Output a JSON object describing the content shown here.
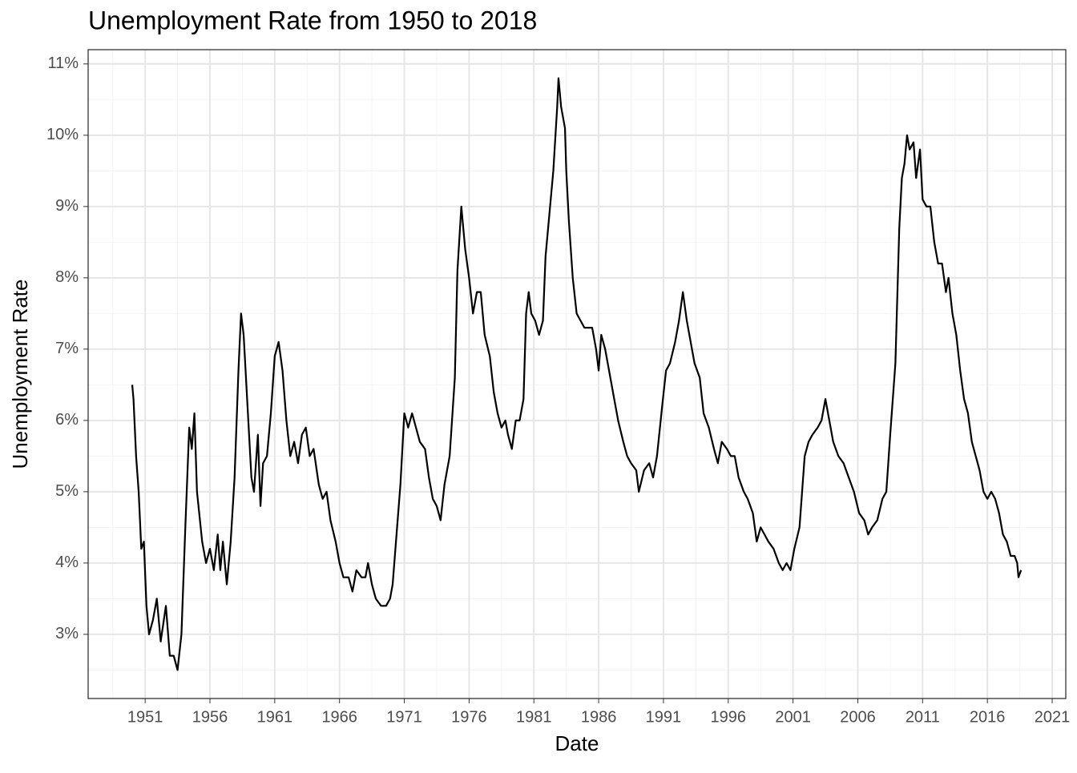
{
  "chart_data": {
    "type": "line",
    "title": "Unemployment Rate from 1950 to 2018",
    "x_label": "Date",
    "y_label": "Unemployment Rate",
    "xlim": [
      1946.6,
      2022.05
    ],
    "xticks": [
      1951,
      1956,
      1961,
      1966,
      1971,
      1976,
      1981,
      1986,
      1991,
      1996,
      2001,
      2006,
      2011,
      2016,
      2021
    ],
    "ylim": [
      2.1,
      11.2
    ],
    "yticks": [
      {
        "value": 3,
        "label": "3%"
      },
      {
        "value": 4,
        "label": "4%"
      },
      {
        "value": 5,
        "label": "5%"
      },
      {
        "value": 6,
        "label": "6%"
      },
      {
        "value": 7,
        "label": "7%"
      },
      {
        "value": 8,
        "label": "8%"
      },
      {
        "value": 9,
        "label": "9%"
      },
      {
        "value": 10,
        "label": "10%"
      },
      {
        "value": 11,
        "label": "11%"
      }
    ],
    "grid": true,
    "series": [
      {
        "color": "#000000",
        "x": [
          1950.0,
          1950.1,
          1950.3,
          1950.5,
          1950.7,
          1950.9,
          1951.1,
          1951.3,
          1951.6,
          1951.9,
          1952.2,
          1952.6,
          1952.9,
          1953.2,
          1953.5,
          1953.8,
          1954.1,
          1954.4,
          1954.6,
          1954.8,
          1955.0,
          1955.4,
          1955.7,
          1956.0,
          1956.3,
          1956.6,
          1956.8,
          1957.0,
          1957.3,
          1957.6,
          1957.9,
          1958.2,
          1958.4,
          1958.6,
          1958.9,
          1959.2,
          1959.4,
          1959.7,
          1959.9,
          1960.1,
          1960.4,
          1960.7,
          1961.0,
          1961.3,
          1961.6,
          1961.9,
          1962.2,
          1962.5,
          1962.8,
          1963.1,
          1963.4,
          1963.7,
          1964.0,
          1964.4,
          1964.7,
          1965.0,
          1965.3,
          1965.7,
          1966.0,
          1966.3,
          1966.7,
          1967.0,
          1967.3,
          1967.7,
          1968.0,
          1968.2,
          1968.5,
          1968.8,
          1969.2,
          1969.6,
          1969.9,
          1970.1,
          1970.4,
          1970.7,
          1971.0,
          1971.3,
          1971.6,
          1971.9,
          1972.2,
          1972.6,
          1972.9,
          1973.2,
          1973.5,
          1973.8,
          1974.1,
          1974.5,
          1974.9,
          1975.1,
          1975.4,
          1975.7,
          1976.0,
          1976.3,
          1976.6,
          1976.9,
          1977.2,
          1977.6,
          1977.9,
          1978.2,
          1978.5,
          1978.8,
          1979.0,
          1979.3,
          1979.6,
          1979.9,
          1980.2,
          1980.4,
          1980.6,
          1980.8,
          1981.1,
          1981.4,
          1981.7,
          1981.9,
          1982.2,
          1982.5,
          1982.8,
          1982.9,
          1983.1,
          1983.4,
          1983.5,
          1983.7,
          1984.0,
          1984.3,
          1984.6,
          1984.9,
          1985.2,
          1985.5,
          1985.8,
          1986.0,
          1986.2,
          1986.5,
          1986.9,
          1987.2,
          1987.5,
          1987.9,
          1988.2,
          1988.5,
          1988.9,
          1989.1,
          1989.5,
          1989.9,
          1990.2,
          1990.5,
          1990.9,
          1991.2,
          1991.5,
          1991.9,
          1992.2,
          1992.5,
          1992.8,
          1993.1,
          1993.4,
          1993.8,
          1994.1,
          1994.5,
          1994.9,
          1995.2,
          1995.5,
          1995.9,
          1996.2,
          1996.5,
          1996.8,
          1997.2,
          1997.5,
          1997.9,
          1998.2,
          1998.5,
          1998.8,
          1999.1,
          1999.5,
          1999.9,
          2000.2,
          2000.5,
          2000.8,
          2001.1,
          2001.5,
          2001.9,
          2002.2,
          2002.5,
          2002.9,
          2003.2,
          2003.5,
          2003.8,
          2004.1,
          2004.5,
          2004.9,
          2005.3,
          2005.7,
          2006.1,
          2006.5,
          2006.8,
          2007.1,
          2007.5,
          2007.9,
          2008.2,
          2008.5,
          2008.9,
          2009.2,
          2009.4,
          2009.6,
          2009.8,
          2010.0,
          2010.3,
          2010.5,
          2010.8,
          2011.0,
          2011.3,
          2011.6,
          2011.9,
          2012.2,
          2012.5,
          2012.8,
          2013.0,
          2013.3,
          2013.6,
          2013.9,
          2014.2,
          2014.5,
          2014.8,
          2015.1,
          2015.4,
          2015.7,
          2016.0,
          2016.3,
          2016.6,
          2016.9,
          2017.2,
          2017.5,
          2017.8,
          2018.1,
          2018.3,
          2018.4,
          2018.6
        ],
        "values": [
          6.5,
          6.3,
          5.5,
          5.0,
          4.2,
          4.3,
          3.4,
          3.0,
          3.2,
          3.5,
          2.9,
          3.4,
          2.7,
          2.7,
          2.5,
          3.0,
          4.5,
          5.9,
          5.6,
          6.1,
          5.0,
          4.3,
          4.0,
          4.2,
          3.9,
          4.4,
          3.9,
          4.3,
          3.7,
          4.3,
          5.2,
          6.7,
          7.5,
          7.2,
          6.2,
          5.2,
          5.0,
          5.8,
          4.8,
          5.4,
          5.5,
          6.1,
          6.9,
          7.1,
          6.7,
          6.0,
          5.5,
          5.7,
          5.4,
          5.8,
          5.9,
          5.5,
          5.6,
          5.1,
          4.9,
          5.0,
          4.6,
          4.3,
          4.0,
          3.8,
          3.8,
          3.6,
          3.9,
          3.8,
          3.8,
          4.0,
          3.7,
          3.5,
          3.4,
          3.4,
          3.5,
          3.7,
          4.4,
          5.1,
          6.1,
          5.9,
          6.1,
          5.9,
          5.7,
          5.6,
          5.2,
          4.9,
          4.8,
          4.6,
          5.1,
          5.5,
          6.6,
          8.1,
          9.0,
          8.4,
          8.0,
          7.5,
          7.8,
          7.8,
          7.2,
          6.9,
          6.4,
          6.1,
          5.9,
          6.0,
          5.8,
          5.6,
          6.0,
          6.0,
          6.3,
          7.5,
          7.8,
          7.5,
          7.4,
          7.2,
          7.4,
          8.3,
          8.9,
          9.5,
          10.4,
          10.8,
          10.4,
          10.1,
          9.5,
          8.8,
          8.0,
          7.5,
          7.4,
          7.3,
          7.3,
          7.3,
          7.0,
          6.7,
          7.2,
          7.0,
          6.6,
          6.3,
          6.0,
          5.7,
          5.5,
          5.4,
          5.3,
          5.0,
          5.3,
          5.4,
          5.2,
          5.5,
          6.2,
          6.7,
          6.8,
          7.1,
          7.4,
          7.8,
          7.4,
          7.1,
          6.8,
          6.6,
          6.1,
          5.9,
          5.6,
          5.4,
          5.7,
          5.6,
          5.5,
          5.5,
          5.2,
          5.0,
          4.9,
          4.7,
          4.3,
          4.5,
          4.4,
          4.3,
          4.2,
          4.0,
          3.9,
          4.0,
          3.9,
          4.2,
          4.5,
          5.5,
          5.7,
          5.8,
          5.9,
          6.0,
          6.3,
          6.0,
          5.7,
          5.5,
          5.4,
          5.2,
          5.0,
          4.7,
          4.6,
          4.4,
          4.5,
          4.6,
          4.9,
          5.0,
          5.8,
          6.8,
          8.7,
          9.4,
          9.6,
          10.0,
          9.8,
          9.9,
          9.4,
          9.8,
          9.1,
          9.0,
          9.0,
          8.5,
          8.2,
          8.2,
          7.8,
          8.0,
          7.5,
          7.2,
          6.7,
          6.3,
          6.1,
          5.7,
          5.5,
          5.3,
          5.0,
          4.9,
          5.0,
          4.9,
          4.7,
          4.4,
          4.3,
          4.1,
          4.1,
          4.0,
          3.8,
          3.9
        ]
      }
    ]
  }
}
